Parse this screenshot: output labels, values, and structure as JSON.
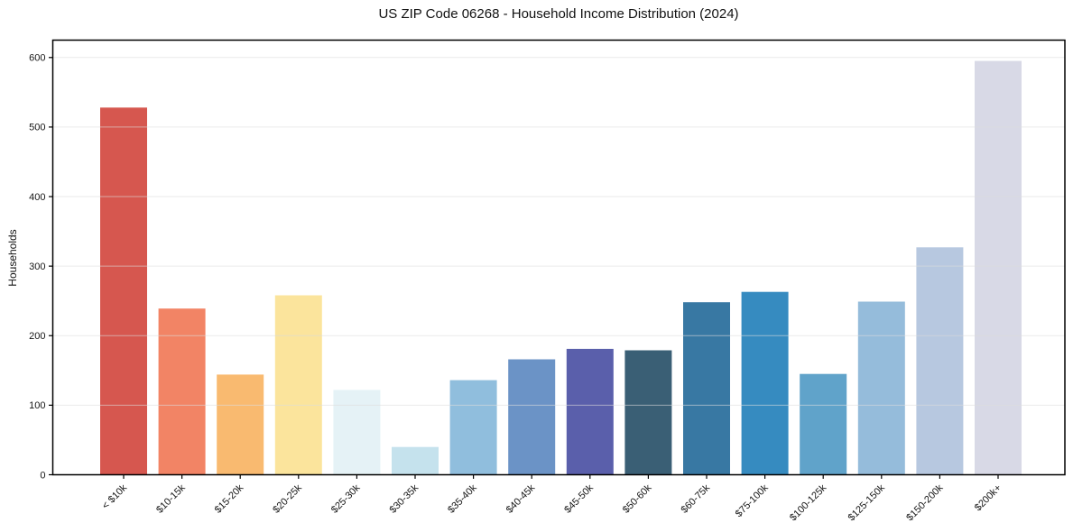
{
  "figure": {
    "title": "US ZIP Code 06268 - Household Income Distribution (2024)",
    "ylabel": "Households"
  },
  "chart_data": {
    "type": "bar",
    "title": "US ZIP Code 06268 - Household Income Distribution (2024)",
    "xlabel": "",
    "ylabel": "Households",
    "categories": [
      "< $10k",
      "$10-15k",
      "$15-20k",
      "$20-25k",
      "$25-30k",
      "$30-35k",
      "$35-40k",
      "$40-45k",
      "$45-50k",
      "$50-60k",
      "$60-75k",
      "$75-100k",
      "$100-125k",
      "$125-150k",
      "$150-200k",
      "$200k+"
    ],
    "values": [
      528,
      239,
      144,
      258,
      122,
      40,
      136,
      166,
      181,
      179,
      248,
      263,
      145,
      249,
      327,
      595
    ],
    "bar_colors": [
      "#d6574f",
      "#f28465",
      "#f9ba70",
      "#fbe49c",
      "#e5f2f6",
      "#c5e2ed",
      "#90bedd",
      "#6b93c6",
      "#5a5fab",
      "#3a5f75",
      "#3878a3",
      "#368bc0",
      "#60a3ca",
      "#95bcdb",
      "#b7c8e0",
      "#d8d9e6"
    ],
    "yticks": [
      0,
      100,
      200,
      300,
      400,
      500,
      600
    ],
    "ylim": [
      0,
      625
    ],
    "grid": "horizontal-only",
    "grid_color": "#dcdcdc",
    "legend": "none",
    "tick_label_rotation": 45,
    "text_color": "#151515",
    "spine_color": "#000000"
  }
}
